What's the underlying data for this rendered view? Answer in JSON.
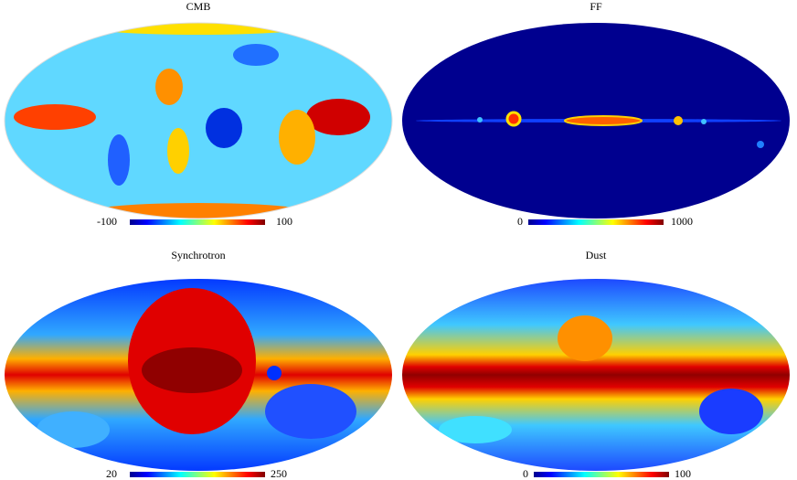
{
  "panels": [
    {
      "title": "CMB",
      "colorbar": {
        "min": "-100",
        "max": "100"
      }
    },
    {
      "title": "FF",
      "colorbar": {
        "min": "0",
        "max": "1000"
      }
    },
    {
      "title": "Synchrotron",
      "colorbar": {
        "min": "20",
        "max": "250"
      }
    },
    {
      "title": "Dust",
      "colorbar": {
        "min": "0",
        "max": "100"
      }
    }
  ]
}
